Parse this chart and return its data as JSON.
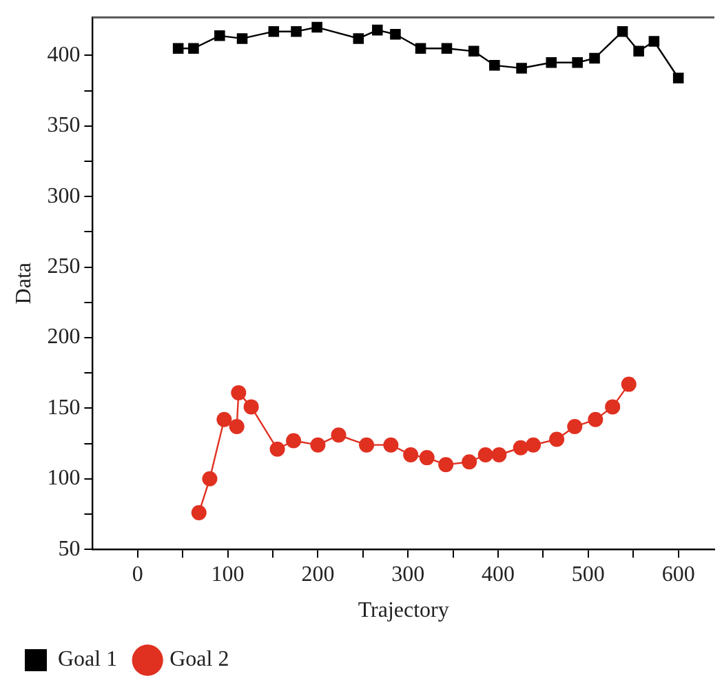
{
  "chart_data": {
    "type": "line",
    "xlabel": "Trajectory",
    "ylabel": "Data",
    "xlim": [
      -50,
      640
    ],
    "ylim": [
      50,
      427
    ],
    "xticks": [
      0,
      {
        "value": 50,
        "label": null
      },
      100,
      {
        "value": 150,
        "label": null
      },
      200,
      {
        "value": 250,
        "label": null
      },
      300,
      {
        "value": 350,
        "label": null
      },
      400,
      {
        "value": 450,
        "label": null
      },
      500,
      {
        "value": 550,
        "label": null
      },
      600
    ],
    "yticks": [
      50,
      {
        "value": 75,
        "label": null
      },
      100,
      {
        "value": 125,
        "label": null
      },
      150,
      {
        "value": 175,
        "label": null
      },
      200,
      {
        "value": 225,
        "label": null
      },
      250,
      {
        "value": 275,
        "label": null
      },
      300,
      {
        "value": 325,
        "label": null
      },
      350,
      {
        "value": 375,
        "label": null
      },
      400
    ],
    "grid": false,
    "legend": "bottom",
    "line_style": "solid",
    "series": [
      {
        "name": "Goal 1",
        "color": "#000000",
        "marker": "square",
        "x": [
          45,
          62,
          91,
          116,
          151,
          176,
          199,
          245,
          266,
          286,
          314,
          343,
          373,
          396,
          426,
          459,
          488,
          507,
          538,
          556,
          573,
          600
        ],
        "values": [
          405,
          405,
          414,
          412,
          417,
          417,
          420,
          412,
          418,
          415,
          405,
          405,
          403,
          393,
          391,
          395,
          395,
          398,
          417,
          403,
          410,
          384
        ]
      },
      {
        "name": "Goal 2",
        "color": "#e03020",
        "marker": "circle",
        "x": [
          68,
          80,
          96,
          110,
          112,
          126,
          155,
          173,
          200,
          223,
          254,
          281,
          303,
          321,
          342,
          368,
          386,
          401,
          425,
          439,
          465,
          485,
          508,
          527,
          545
        ],
        "values": [
          76,
          100,
          142,
          137,
          161,
          151,
          121,
          127,
          124,
          131,
          124,
          124,
          117,
          115,
          110,
          112,
          117,
          117,
          122,
          124,
          128,
          137,
          142,
          151,
          167
        ]
      }
    ]
  }
}
